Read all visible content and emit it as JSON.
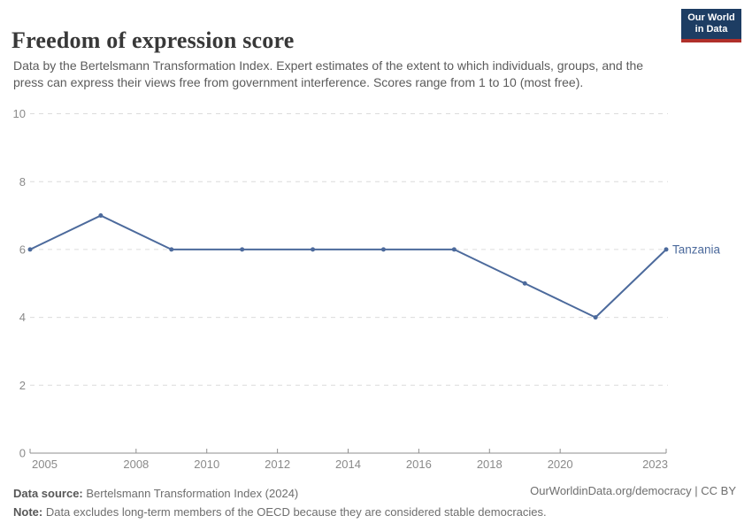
{
  "header": {
    "title": "Freedom of expression score",
    "subtitle": "Data by the Bertelsmann Transformation Index. Expert estimates of the extent to which individuals, groups, and the press can express their views free from government interference. Scores range from 1 to 10 (most free)."
  },
  "logo": {
    "line1": "Our World",
    "line2": "in Data",
    "bg_color": "#1d3d63",
    "bar_color": "#b0302a"
  },
  "footer": {
    "source_label": "Data source:",
    "source_text": " Bertelsmann Transformation Index (2024)",
    "note_label": "Note:",
    "note_text": " Data excludes long-term members of the OECD because they are considered stable democracies.",
    "credit": "OurWorldinData.org/democracy | CC BY"
  },
  "chart_data": {
    "type": "line",
    "title": "Freedom of expression score",
    "x": [
      2005,
      2007,
      2009,
      2011,
      2013,
      2015,
      2017,
      2019,
      2021,
      2023
    ],
    "series": [
      {
        "name": "Tanzania",
        "values": [
          6,
          7,
          6,
          6,
          6,
          6,
          6,
          5,
          4,
          6
        ],
        "color": "#4c6a9c"
      }
    ],
    "xlim": [
      2005,
      2023
    ],
    "ylim": [
      0,
      10
    ],
    "xticks": [
      2005,
      2008,
      2010,
      2012,
      2014,
      2016,
      2018,
      2020,
      2023
    ],
    "yticks": [
      0,
      2,
      4,
      6,
      8,
      10
    ],
    "xlabel": "",
    "ylabel": "",
    "grid": "horizontal-dashed",
    "legend": "end-of-line-label",
    "gridline_color": "#dcdcdc",
    "axis_color": "#8f8f8f",
    "tick_label_color": "#8a8a8a"
  }
}
